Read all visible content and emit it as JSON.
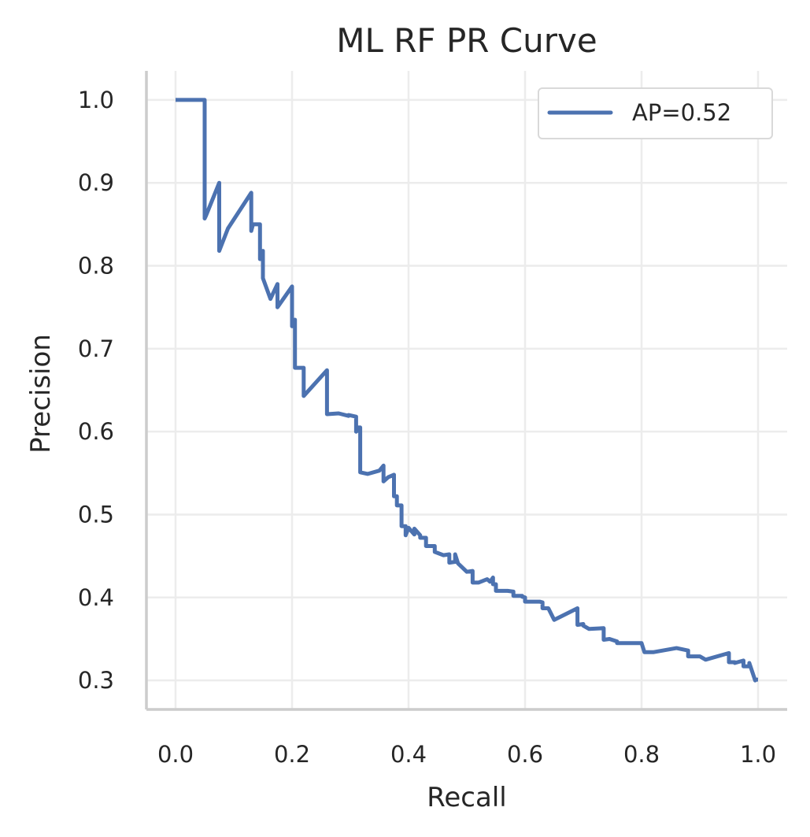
{
  "chart_data": {
    "type": "line",
    "title": "ML RF PR Curve",
    "xlabel": "Recall",
    "ylabel": "Precision",
    "xlim": [
      -0.05,
      1.05
    ],
    "ylim": [
      0.265,
      1.035
    ],
    "xticks": [
      0.0,
      0.2,
      0.4,
      0.6,
      0.8,
      1.0
    ],
    "xtick_labels": [
      "0.0",
      "0.2",
      "0.4",
      "0.6",
      "0.8",
      "1.0"
    ],
    "yticks": [
      0.3,
      0.4,
      0.5,
      0.6,
      0.7,
      0.8,
      0.9,
      1.0
    ],
    "ytick_labels": [
      "0.3",
      "0.4",
      "0.5",
      "0.6",
      "0.7",
      "0.8",
      "0.9",
      "1.0"
    ],
    "grid": true,
    "legend_position": "top-right",
    "line_color": "#4c72b0",
    "series": [
      {
        "name": "AP=0.52",
        "x": [
          0.0,
          0.05,
          0.05,
          0.052,
          0.075,
          0.075,
          0.09,
          0.13,
          0.13,
          0.133,
          0.145,
          0.145,
          0.15,
          0.15,
          0.163,
          0.175,
          0.175,
          0.2,
          0.2,
          0.205,
          0.205,
          0.22,
          0.22,
          0.26,
          0.26,
          0.28,
          0.297,
          0.297,
          0.31,
          0.31,
          0.312,
          0.312,
          0.317,
          0.317,
          0.33,
          0.35,
          0.357,
          0.357,
          0.365,
          0.375,
          0.375,
          0.38,
          0.38,
          0.388,
          0.388,
          0.395,
          0.395,
          0.4,
          0.41,
          0.412,
          0.41,
          0.42,
          0.42,
          0.43,
          0.43,
          0.445,
          0.445,
          0.46,
          0.47,
          0.47,
          0.48,
          0.48,
          0.485,
          0.5,
          0.51,
          0.51,
          0.52,
          0.535,
          0.54,
          0.545,
          0.545,
          0.55,
          0.55,
          0.57,
          0.58,
          0.58,
          0.595,
          0.595,
          0.6,
          0.6,
          0.625,
          0.63,
          0.63,
          0.64,
          0.65,
          0.69,
          0.69,
          0.7,
          0.7,
          0.71,
          0.71,
          0.735,
          0.735,
          0.745,
          0.745,
          0.758,
          0.758,
          0.8,
          0.805,
          0.82,
          0.86,
          0.88,
          0.88,
          0.9,
          0.91,
          0.95,
          0.95,
          0.96,
          0.96,
          0.975,
          0.975,
          0.985,
          0.985,
          0.995,
          0.995,
          1.0
        ],
        "y": [
          1.0,
          1.0,
          0.857,
          0.86,
          0.9,
          0.818,
          0.845,
          0.888,
          0.842,
          0.85,
          0.85,
          0.808,
          0.818,
          0.785,
          0.76,
          0.778,
          0.75,
          0.775,
          0.727,
          0.735,
          0.677,
          0.677,
          0.643,
          0.674,
          0.621,
          0.622,
          0.619,
          0.62,
          0.618,
          0.6,
          0.601,
          0.605,
          0.605,
          0.551,
          0.549,
          0.553,
          0.559,
          0.54,
          0.545,
          0.548,
          0.522,
          0.522,
          0.511,
          0.511,
          0.486,
          0.486,
          0.475,
          0.484,
          0.476,
          0.48,
          0.483,
          0.475,
          0.472,
          0.472,
          0.462,
          0.462,
          0.455,
          0.451,
          0.452,
          0.442,
          0.443,
          0.452,
          0.441,
          0.431,
          0.432,
          0.418,
          0.418,
          0.422,
          0.419,
          0.424,
          0.416,
          0.416,
          0.408,
          0.408,
          0.407,
          0.402,
          0.402,
          0.401,
          0.4,
          0.395,
          0.395,
          0.394,
          0.387,
          0.387,
          0.373,
          0.387,
          0.367,
          0.368,
          0.366,
          0.362,
          0.362,
          0.363,
          0.349,
          0.35,
          0.35,
          0.347,
          0.345,
          0.345,
          0.334,
          0.334,
          0.339,
          0.336,
          0.329,
          0.329,
          0.325,
          0.333,
          0.322,
          0.322,
          0.321,
          0.324,
          0.317,
          0.317,
          0.321,
          0.3,
          0.301,
          0.301
        ]
      }
    ]
  }
}
